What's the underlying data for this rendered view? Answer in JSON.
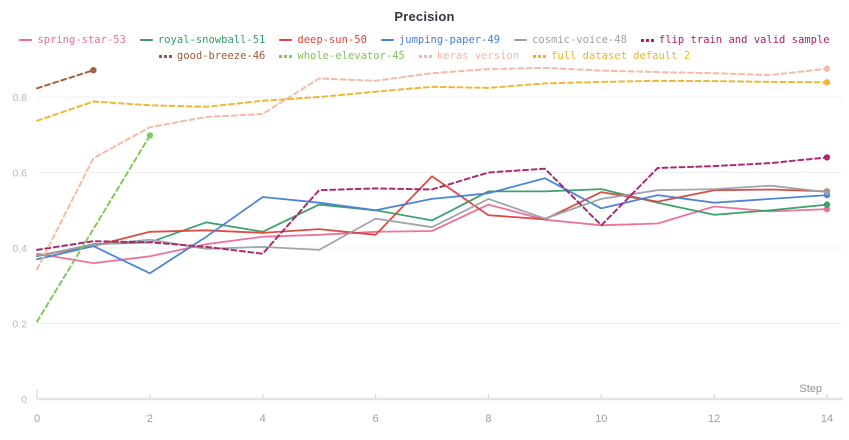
{
  "chart_data": {
    "type": "line",
    "title": "Precision",
    "xlabel": "Step",
    "x": [
      0,
      1,
      2,
      3,
      4,
      5,
      6,
      7,
      8,
      9,
      10,
      11,
      12,
      13,
      14
    ],
    "xticks": [
      0,
      2,
      4,
      6,
      8,
      10,
      12,
      14
    ],
    "yticks": [
      0,
      0.2,
      0.4,
      0.6,
      0.8
    ],
    "ylim": [
      0,
      0.9
    ],
    "grid": "horizontal",
    "legend_position": "top",
    "series": [
      {
        "name": "spring-star-53",
        "color": "#ea6d99",
        "dashed": false,
        "values": [
          0.385,
          0.36,
          0.378,
          0.41,
          0.43,
          0.435,
          0.443,
          0.445,
          0.515,
          0.475,
          0.46,
          0.465,
          0.51,
          0.497,
          0.503
        ]
      },
      {
        "name": "royal-snowball-51",
        "color": "#359d64",
        "dashed": false,
        "values": [
          0.378,
          0.41,
          0.415,
          0.468,
          0.443,
          0.515,
          0.5,
          0.473,
          0.55,
          0.55,
          0.556,
          0.52,
          0.488,
          0.5,
          0.515
        ]
      },
      {
        "name": "deep-sun-50",
        "color": "#d8453e",
        "dashed": false,
        "values": [
          0.38,
          0.405,
          0.443,
          0.447,
          0.44,
          0.45,
          0.435,
          0.59,
          0.487,
          0.476,
          0.548,
          0.523,
          0.553,
          0.555,
          0.55
        ]
      },
      {
        "name": "jumping-paper-49",
        "color": "#477ed4",
        "dashed": false,
        "values": [
          0.37,
          0.405,
          0.333,
          0.43,
          0.535,
          0.52,
          0.5,
          0.53,
          0.545,
          0.585,
          0.505,
          0.54,
          0.52,
          0.53,
          0.54
        ]
      },
      {
        "name": "cosmic-voice-48",
        "color": "#9ca1a7",
        "dashed": false,
        "values": [
          0.38,
          0.408,
          0.422,
          0.398,
          0.403,
          0.395,
          0.478,
          0.455,
          0.53,
          0.478,
          0.53,
          0.553,
          0.556,
          0.565,
          0.548
        ]
      },
      {
        "name": "flip train and valid sample",
        "color": "#a8216b",
        "dashed": true,
        "values": [
          0.395,
          0.418,
          0.415,
          0.403,
          0.385,
          0.553,
          0.558,
          0.555,
          0.6,
          0.61,
          0.46,
          0.612,
          0.617,
          0.625,
          0.64
        ]
      },
      {
        "name": "good-breeze-46",
        "color": "#a0583a",
        "dashed": true,
        "values": [
          0.823,
          0.871
        ]
      },
      {
        "name": "whole-elevator-45",
        "color": "#82c35c",
        "dashed": true,
        "values": [
          0.205,
          0.45,
          0.698
        ]
      },
      {
        "name": "keras version",
        "color": "#f3b7a2",
        "dashed": true,
        "values": [
          0.343,
          0.638,
          0.72,
          0.747,
          0.755,
          0.849,
          0.843,
          0.863,
          0.874,
          0.877,
          0.87,
          0.866,
          0.863,
          0.858,
          0.875
        ]
      },
      {
        "name": "full dataset default 2",
        "color": "#ebb42e",
        "dashed": true,
        "values": [
          0.737,
          0.788,
          0.778,
          0.774,
          0.79,
          0.8,
          0.814,
          0.827,
          0.824,
          0.836,
          0.84,
          0.843,
          0.842,
          0.84,
          0.839
        ]
      }
    ],
    "legend_rows": [
      [
        "spring-star-53",
        "royal-snowball-51",
        "deep-sun-50",
        "jumping-paper-49",
        "cosmic-voice-48",
        "flip train and valid sample"
      ],
      [
        "good-breeze-46",
        "whole-elevator-45",
        "keras version",
        "full dataset default 2"
      ]
    ]
  },
  "style": {
    "grid_color": "#f0f0f1",
    "axis_line_color": "#e2e4e8",
    "tick_color": "#d8dade",
    "ytick_label_color": "#b5b8be",
    "xtick_label_color": "#9aa0a8",
    "xlabel_color": "#8d929b"
  }
}
